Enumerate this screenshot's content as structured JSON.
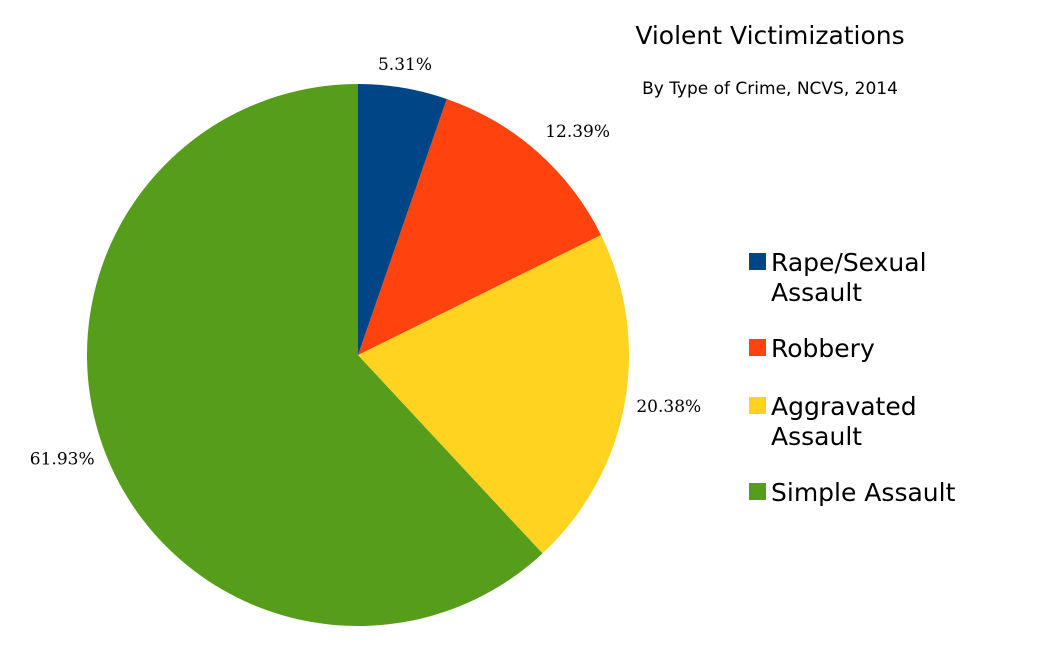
{
  "chart_data": {
    "type": "pie",
    "title": "Violent Victimizations",
    "subtitle": "By Type of Crime, NCVS, 2014",
    "legend_position": "right",
    "start_angle_deg": 0,
    "direction": "counterclockwise",
    "slices": [
      {
        "name": "Simple Assault",
        "legend_lines": [
          "Simple Assault"
        ],
        "value": 61.93,
        "label": "61.93%",
        "color": "#579d1c"
      },
      {
        "name": "Aggravated Assault",
        "legend_lines": [
          "Aggravated",
          "Assault"
        ],
        "value": 20.38,
        "label": "20.38%",
        "color": "#ffd320"
      },
      {
        "name": "Robbery",
        "legend_lines": [
          "Robbery"
        ],
        "value": 12.39,
        "label": "12.39%",
        "color": "#ff420e"
      },
      {
        "name": "Rape/Sexual Assault",
        "legend_lines": [
          "Rape/Sexual",
          "Assault"
        ],
        "value": 5.31,
        "label": "5.31%",
        "color": "#004586"
      }
    ],
    "legend_order": [
      "Rape/Sexual Assault",
      "Robbery",
      "Aggravated Assault",
      "Simple Assault"
    ]
  }
}
